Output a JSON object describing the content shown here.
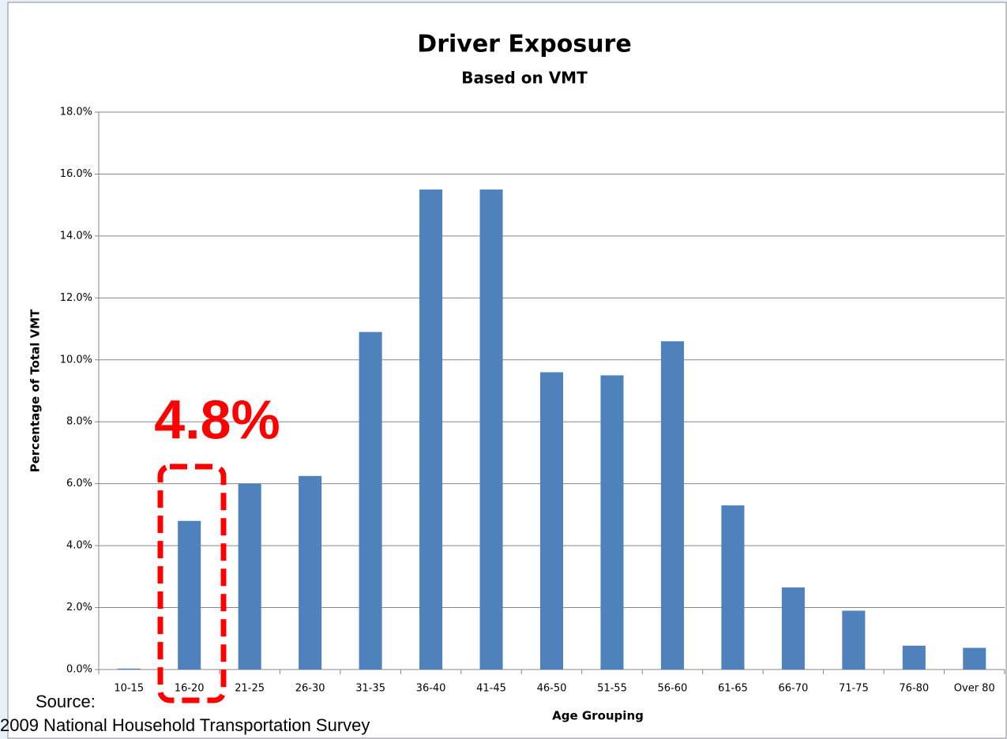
{
  "chart_data": {
    "type": "bar",
    "title": "Driver Exposure",
    "subtitle": "Based on VMT",
    "y_axis_label": "Percentage of Total VMT",
    "x_axis_label": "Age Grouping",
    "annotation": "4.8%",
    "source": [
      "Source:",
      "2009 National Household Transportation Survey"
    ],
    "categories": [
      "10-15",
      "16-20",
      "21-25",
      "26-30",
      "31-35",
      "36-40",
      "41-45",
      "46-50",
      "51-55",
      "56-60",
      "61-65",
      "66-70",
      "71-75",
      "76-80",
      "Over 80"
    ],
    "values": [
      0.03,
      4.8,
      6.0,
      6.25,
      10.9,
      15.5,
      15.5,
      9.6,
      9.5,
      10.6,
      5.3,
      2.65,
      1.9,
      0.77,
      0.7
    ],
    "color": "#4f81bd",
    "ylim": [
      0,
      18
    ],
    "yticks": [
      {
        "value": 0,
        "label": "0.0%"
      },
      {
        "value": 2,
        "label": "2.0%"
      },
      {
        "value": 4,
        "label": "4.0%"
      },
      {
        "value": 6,
        "label": "6.0%"
      },
      {
        "value": 8,
        "label": "8.0%"
      },
      {
        "value": 10,
        "label": "10.0%"
      },
      {
        "value": 12,
        "label": "12.0%"
      },
      {
        "value": 14,
        "label": "14.0%"
      },
      {
        "value": 16,
        "label": "16.0%"
      },
      {
        "value": 18,
        "label": "18.0%"
      }
    ],
    "grid": true
  }
}
